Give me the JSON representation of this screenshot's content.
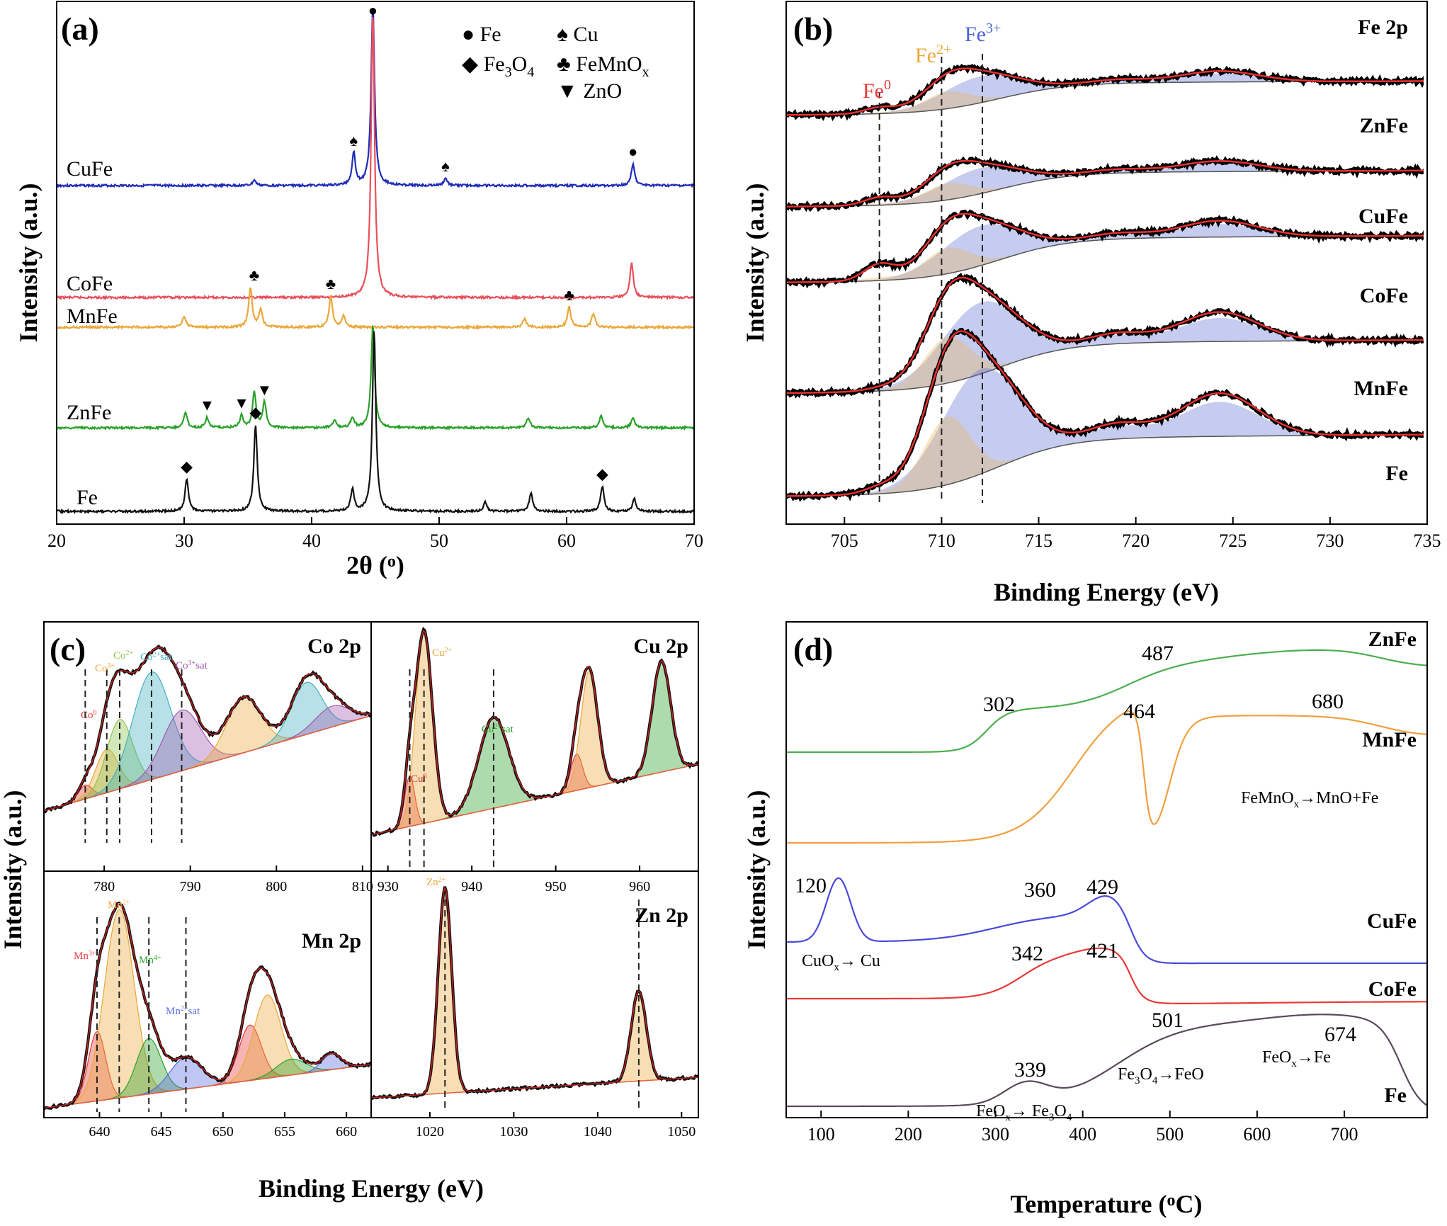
{
  "chart_data": [
    {
      "panel": "(a)",
      "type": "line",
      "xlabel": "2θ (°)",
      "ylabel": "Intensity (a.u.)",
      "xlim": [
        20,
        70
      ],
      "xticks": [
        "20",
        "30",
        "40",
        "50",
        "60",
        "70"
      ],
      "legend": [
        {
          "symbol": "●",
          "label": "Fe"
        },
        {
          "symbol": "♠",
          "label": "Cu"
        },
        {
          "symbol": "◆",
          "label": "Fe3O4"
        },
        {
          "symbol": "♣",
          "label": "FeMnOx"
        },
        {
          "symbol": "▼",
          "label": "ZnO"
        }
      ],
      "series": [
        {
          "name": "CuFe",
          "color": "#1f2db8",
          "peaks": [
            [
              35.5,
              0.03
            ],
            [
              43.3,
              0.18
            ],
            [
              44.8,
              1.0
            ],
            [
              50.5,
              0.04
            ],
            [
              65.2,
              0.12
            ]
          ]
        },
        {
          "name": "CoFe",
          "color": "#e8505b",
          "peaks": [
            [
              44.8,
              1.0
            ],
            [
              65.1,
              0.12
            ]
          ]
        },
        {
          "name": "MnFe",
          "color": "#eaa73a",
          "peaks": [
            [
              30.0,
              0.2
            ],
            [
              35.2,
              0.7
            ],
            [
              36.0,
              0.3
            ],
            [
              41.5,
              0.55
            ],
            [
              42.5,
              0.2
            ],
            [
              56.7,
              0.15
            ],
            [
              60.2,
              0.35
            ],
            [
              62.1,
              0.25
            ]
          ]
        },
        {
          "name": "ZnFe",
          "color": "#2aa12a",
          "peaks": [
            [
              30.1,
              0.15
            ],
            [
              31.8,
              0.1
            ],
            [
              34.5,
              0.12
            ],
            [
              35.5,
              0.35
            ],
            [
              36.3,
              0.25
            ],
            [
              41.8,
              0.08
            ],
            [
              43.2,
              0.1
            ],
            [
              44.8,
              1.0
            ],
            [
              57.0,
              0.1
            ],
            [
              62.7,
              0.12
            ],
            [
              65.2,
              0.1
            ]
          ]
        },
        {
          "name": "Fe",
          "color": "#111111",
          "peaks": [
            [
              30.2,
              0.18
            ],
            [
              35.6,
              0.48
            ],
            [
              43.2,
              0.12
            ],
            [
              44.9,
              1.0
            ],
            [
              53.6,
              0.05
            ],
            [
              57.2,
              0.1
            ],
            [
              62.8,
              0.14
            ],
            [
              65.3,
              0.07
            ]
          ]
        }
      ],
      "markers": [
        {
          "symbol": "♠",
          "x": 43.3,
          "series": "CuFe"
        },
        {
          "symbol": "●",
          "x": 44.8,
          "series": "CuFe"
        },
        {
          "symbol": "♠",
          "x": 50.5,
          "series": "CuFe"
        },
        {
          "symbol": "●",
          "x": 65.2,
          "series": "CuFe"
        },
        {
          "symbol": "♣",
          "x": 35.5,
          "series": "MnFe"
        },
        {
          "symbol": "♣",
          "x": 41.5,
          "series": "MnFe"
        },
        {
          "symbol": "♣",
          "x": 60.2,
          "series": "MnFe"
        },
        {
          "symbol": "▼",
          "x": 31.8,
          "series": "ZnFe"
        },
        {
          "symbol": "▼",
          "x": 34.5,
          "series": "ZnFe"
        },
        {
          "symbol": "▼",
          "x": 36.3,
          "series": "ZnFe"
        },
        {
          "symbol": "◆",
          "x": 30.2,
          "series": "Fe"
        },
        {
          "symbol": "◆",
          "x": 35.6,
          "series": "Fe"
        },
        {
          "symbol": "◆",
          "x": 62.8,
          "series": "Fe"
        }
      ]
    },
    {
      "panel": "(b)",
      "type": "line",
      "title": "Fe 2p",
      "xlabel": "Binding Energy (eV)",
      "ylabel": "Intensity (a.u.)",
      "xlim": [
        702,
        735
      ],
      "xticks": [
        "705",
        "710",
        "715",
        "720",
        "725",
        "730",
        "735"
      ],
      "annotations": [
        {
          "label": "Fe0",
          "x": 706.8,
          "color": "#e83a3a"
        },
        {
          "label": "Fe2+",
          "x": 710.0,
          "color": "#eaa73a"
        },
        {
          "label": "Fe3+",
          "x": 712.1,
          "color": "#4a62d8"
        }
      ],
      "series": [
        {
          "name": "ZnFe",
          "fe0": 0.1,
          "main": 0.55
        },
        {
          "name": "CuFe",
          "fe0": 0.12,
          "main": 0.5
        },
        {
          "name": "CoFe",
          "fe0": 0.2,
          "main": 0.6
        },
        {
          "name": "MnFe",
          "fe0": 0.02,
          "main": 0.95
        },
        {
          "name": "Fe",
          "fe0": 0.05,
          "main": 1.2
        }
      ]
    },
    {
      "panel": "(c)",
      "type": "line",
      "xlabel": "Binding Energy (eV)",
      "ylabel": "Intensity (a.u.)",
      "subplots": [
        {
          "title": "Co 2p",
          "xlim": [
            773,
            811
          ],
          "xticks": [
            "780",
            "790",
            "800",
            "810"
          ],
          "labels": [
            "Co0",
            "Co3+",
            "Co2+",
            "Co2+sat",
            "Co3+sat"
          ],
          "peaks_x": [
            777.8,
            780.3,
            781.8,
            785.5,
            789.0
          ]
        },
        {
          "title": "Cu 2p",
          "xlim": [
            928,
            967
          ],
          "xticks": [
            "930",
            "940",
            "950",
            "960"
          ],
          "labels": [
            "Cu0",
            "Cu2+",
            "Cu2+sat"
          ],
          "peaks_x": [
            932.6,
            934.3,
            942.6
          ]
        },
        {
          "title": "Mn 2p",
          "xlim": [
            635.5,
            662
          ],
          "xticks": [
            "640",
            "645",
            "650",
            "655",
            "660"
          ],
          "labels": [
            "Mn3+",
            "Mn2+",
            "Mn4+",
            "Mn2+sat"
          ],
          "peaks_x": [
            639.8,
            641.6,
            644.0,
            647.0
          ]
        },
        {
          "title": "Zn 2p",
          "xlim": [
            1013,
            1052
          ],
          "xticks": [
            "1020",
            "1030",
            "1040",
            "1050"
          ],
          "labels": [
            "Zn2+"
          ],
          "peaks_x": [
            1021.8,
            1044.9
          ]
        }
      ]
    },
    {
      "panel": "(d)",
      "type": "line",
      "xlabel": "Temperature (°C)",
      "ylabel": "Intensity (a.u.)",
      "xlim": [
        60,
        795
      ],
      "xticks": [
        "100",
        "200",
        "300",
        "400",
        "500",
        "600",
        "700"
      ],
      "series": [
        {
          "name": "ZnFe",
          "color": "#4caf50",
          "peaks": [
            "302",
            "487"
          ]
        },
        {
          "name": "MnFe",
          "color": "#f0a040",
          "peaks": [
            "464",
            "680"
          ]
        },
        {
          "name": "CuFe",
          "color": "#4a4ad8",
          "peaks": [
            "120",
            "360",
            "429"
          ]
        },
        {
          "name": "CoFe",
          "color": "#e83a3a",
          "peaks": [
            "342",
            "421"
          ]
        },
        {
          "name": "Fe",
          "color": "#5a4a5a",
          "peaks": [
            "339",
            "501",
            "674"
          ]
        }
      ],
      "annotations": [
        "FeMnOx→MnO+Fe",
        "CuOx→Cu",
        "Fe3O4→FeO",
        "FeOx→Fe",
        "FeOx→Fe3O4"
      ]
    }
  ]
}
